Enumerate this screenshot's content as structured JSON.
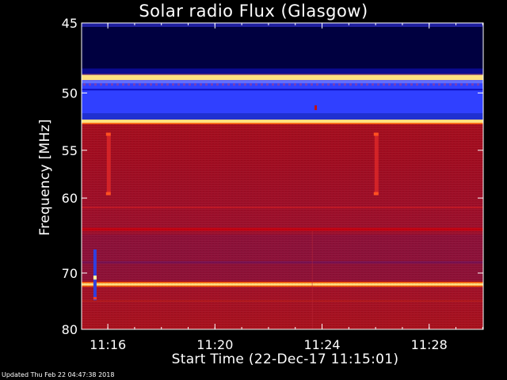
{
  "chart_data": {
    "type": "heatmap",
    "title": "Solar radio Flux (Glasgow)",
    "xlabel": "Start Time (22-Dec-17 11:15:01)",
    "ylabel": "Frequency [MHz]",
    "x_ticks": [
      "11:16",
      "11:20",
      "11:24",
      "11:28"
    ],
    "x_tick_minutes": [
      0.98,
      4.98,
      8.98,
      12.98
    ],
    "xlim_minutes": [
      0,
      15
    ],
    "y_ticks": [
      45,
      50,
      55,
      60,
      70,
      80
    ],
    "ylim": [
      45,
      80
    ],
    "y_scale": "reciprocal",
    "grid": false,
    "colorscale": [
      "#000040",
      "#0000c0",
      "#3040ff",
      "#800000",
      "#c00010",
      "#ff6000",
      "#ffe080"
    ],
    "bands": [
      {
        "freq": [
          45.0,
          48.6
        ],
        "level": "low"
      },
      {
        "freq": [
          48.6,
          49.0
        ],
        "level": "peak"
      },
      {
        "freq": [
          49.0,
          52.2
        ],
        "level": "mid"
      },
      {
        "freq": [
          52.2,
          52.5
        ],
        "level": "peak"
      },
      {
        "freq": [
          52.5,
          80.0
        ],
        "level": "high"
      },
      {
        "freq": [
          63.6,
          64.0
        ],
        "level": "line"
      },
      {
        "freq": [
          71.6,
          72.0
        ],
        "level": "peak"
      }
    ],
    "bursts": [
      {
        "minute": 1.0,
        "freq": [
          53.5,
          59.5
        ]
      },
      {
        "minute": 11.0,
        "freq": [
          53.5,
          59.5
        ]
      },
      {
        "minute": 0.5,
        "freq": [
          66.5,
          74.5
        ]
      }
    ]
  },
  "footer": {
    "updated": "Updated Thu Feb 22 04:47:38 2018"
  }
}
